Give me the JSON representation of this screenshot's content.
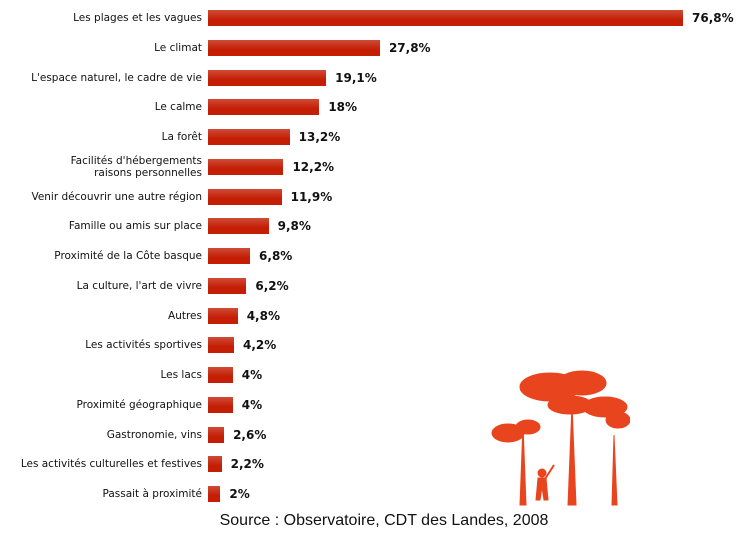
{
  "chart_data": {
    "type": "bar",
    "orientation": "horizontal",
    "color": "#c41e05",
    "categories": [
      "Les plages et les vagues",
      "Le climat",
      "L'espace naturel, le cadre de vie",
      "Le calme",
      "La forêt",
      "Facilités d'hébergements\nraisons personnelles",
      "Venir découvrir une autre région",
      "Famille ou amis sur place",
      "Proximité de la Côte basque",
      "La culture, l'art de vivre",
      "Autres",
      "Les activités sportives",
      "Les lacs",
      "Proximité géographique",
      "Gastronomie, vins",
      "Les activités culturelles et festives",
      "Passait à proximité"
    ],
    "values": [
      76.8,
      27.8,
      19.1,
      18,
      13.2,
      12.2,
      11.9,
      9.8,
      6.8,
      6.2,
      4.8,
      4.2,
      4,
      4,
      2.6,
      2.2,
      2
    ],
    "value_labels": [
      "76,8%",
      "27,8%",
      "19,1%",
      "18%",
      "13,2%",
      "12,2%",
      "11,9%",
      "9,8%",
      "6,8%",
      "6,2%",
      "4,8%",
      "4,2%",
      "4%",
      "4%",
      "2,6%",
      "2,2%",
      "2%"
    ],
    "caption": "Source : Observatoire, CDT des Landes, 2008"
  }
}
